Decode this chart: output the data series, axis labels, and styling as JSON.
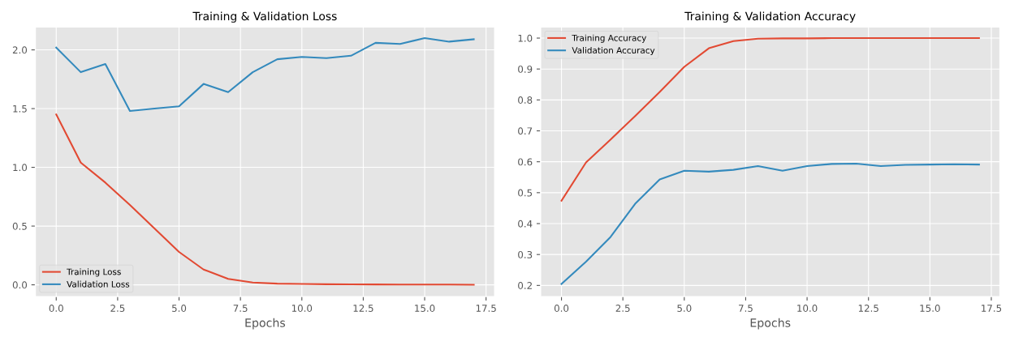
{
  "chart_data": [
    {
      "type": "line",
      "title": "Training & Validation Loss",
      "xlabel": "Epochs",
      "x": [
        0,
        1,
        2,
        3,
        4,
        5,
        6,
        7,
        8,
        9,
        10,
        11,
        12,
        13,
        14,
        15,
        16,
        17
      ],
      "series": [
        {
          "name": "Training Loss",
          "color": "#e24a33",
          "values": [
            1.45,
            1.04,
            0.87,
            0.68,
            0.48,
            0.28,
            0.13,
            0.05,
            0.02,
            0.01,
            0.008,
            0.005,
            0.004,
            0.003,
            0.002,
            0.002,
            0.002,
            0.001
          ]
        },
        {
          "name": "Validation Loss",
          "color": "#348abd",
          "values": [
            2.02,
            1.81,
            1.88,
            1.48,
            1.5,
            1.52,
            1.71,
            1.64,
            1.81,
            1.92,
            1.94,
            1.93,
            1.95,
            2.06,
            2.05,
            2.1,
            2.07,
            2.09
          ]
        }
      ],
      "xlim": [
        -0.85,
        17.85
      ],
      "xticks": [
        {
          "value": 0,
          "label": "0.0"
        },
        {
          "value": 2.5,
          "label": "2.5"
        },
        {
          "value": 5,
          "label": "5.0"
        },
        {
          "value": 7.5,
          "label": "7.5"
        },
        {
          "value": 10,
          "label": "10.0"
        },
        {
          "value": 12.5,
          "label": "12.5"
        },
        {
          "value": 15,
          "label": "15.0"
        },
        {
          "value": 17.5,
          "label": "17.5"
        }
      ],
      "ylim": [
        -0.1,
        2.195
      ],
      "yticks": [
        {
          "value": 0,
          "label": "0.0"
        },
        {
          "value": 0.5,
          "label": "0.5"
        },
        {
          "value": 1,
          "label": "1.0"
        },
        {
          "value": 1.5,
          "label": "1.5"
        },
        {
          "value": 2,
          "label": "2.0"
        }
      ],
      "grid": true,
      "legend": "bottom left"
    },
    {
      "type": "line",
      "title": "Training & Validation Accuracy",
      "xlabel": "Epochs",
      "x": [
        0,
        1,
        2,
        3,
        4,
        5,
        6,
        7,
        8,
        9,
        10,
        11,
        12,
        13,
        14,
        15,
        16,
        17
      ],
      "series": [
        {
          "name": "Training Accuracy",
          "color": "#e24a33",
          "values": [
            0.474,
            0.598,
            0.672,
            0.748,
            0.826,
            0.907,
            0.967,
            0.99,
            0.998,
            0.999,
            0.999,
            1.0,
            1.0,
            1.0,
            1.0,
            1.0,
            1.0,
            1.0
          ]
        },
        {
          "name": "Validation Accuracy",
          "color": "#348abd",
          "values": [
            0.205,
            0.277,
            0.357,
            0.464,
            0.543,
            0.571,
            0.568,
            0.574,
            0.586,
            0.571,
            0.586,
            0.593,
            0.594,
            0.586,
            0.59,
            0.591,
            0.592,
            0.591
          ]
        }
      ],
      "xlim": [
        -0.85,
        17.85
      ],
      "xticks": [
        {
          "value": 0,
          "label": "0.0"
        },
        {
          "value": 2.5,
          "label": "2.5"
        },
        {
          "value": 5,
          "label": "5.0"
        },
        {
          "value": 7.5,
          "label": "7.5"
        },
        {
          "value": 10,
          "label": "10.0"
        },
        {
          "value": 12.5,
          "label": "12.5"
        },
        {
          "value": 15,
          "label": "15.0"
        },
        {
          "value": 17.5,
          "label": "17.5"
        }
      ],
      "ylim": [
        0.164,
        1.036
      ],
      "yticks": [
        0.2,
        0.3,
        0.4,
        0.5,
        0.6,
        0.7,
        0.8,
        0.9,
        {
          "value": 1,
          "label": "1.0"
        }
      ],
      "grid": true,
      "legend": "top left"
    }
  ]
}
